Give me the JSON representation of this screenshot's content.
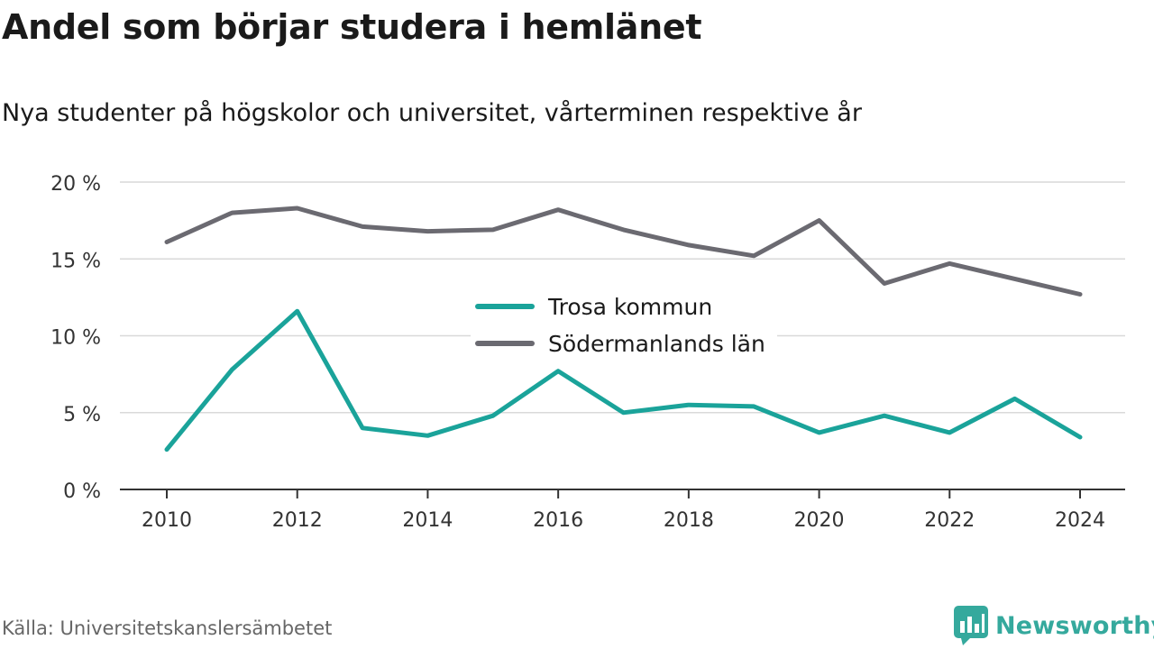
{
  "header": {
    "title": "Andel som börjar studera i hemlänet",
    "subtitle": "Nya studenter på högskolor och universitet, vårterminen respektive år"
  },
  "footer": {
    "source": "Källa: Universitetskanslersämbetet",
    "brand": "Newsworthy",
    "brand_icon": "bar-chart-speech-bubble-icon"
  },
  "colors": {
    "trosa": "#1aa39a",
    "sodermanland": "#6b6a71",
    "brand": "#35a99d",
    "grid": "#d9d9d9",
    "axis": "#333333"
  },
  "chart_data": {
    "type": "line",
    "title": "Andel som börjar studera i hemlänet",
    "subtitle": "Nya studenter på högskolor och universitet, vårterminen respektive år",
    "x": [
      2010,
      2011,
      2012,
      2013,
      2014,
      2015,
      2016,
      2017,
      2018,
      2019,
      2020,
      2021,
      2022,
      2023,
      2024
    ],
    "x_ticks": [
      "2010",
      "2012",
      "2014",
      "2016",
      "2018",
      "2020",
      "2022",
      "2024"
    ],
    "y_ticks": [
      "0 %",
      "5 %",
      "10 %",
      "15 %",
      "20 %"
    ],
    "y_tick_values": [
      0,
      5,
      10,
      15,
      20
    ],
    "ylim": [
      0,
      20
    ],
    "grid": true,
    "legend_position": "center",
    "series": [
      {
        "name": "Trosa kommun",
        "color": "#1aa39a",
        "values": [
          2.6,
          7.8,
          11.6,
          4.0,
          3.5,
          4.8,
          7.7,
          5.0,
          5.5,
          5.4,
          3.7,
          4.8,
          3.7,
          5.9,
          3.4
        ]
      },
      {
        "name": "Södermanlands län",
        "color": "#6b6a71",
        "values": [
          16.1,
          18.0,
          18.3,
          17.1,
          16.8,
          16.9,
          18.2,
          16.9,
          15.9,
          15.2,
          17.5,
          13.4,
          14.7,
          13.7,
          12.7
        ]
      }
    ]
  }
}
